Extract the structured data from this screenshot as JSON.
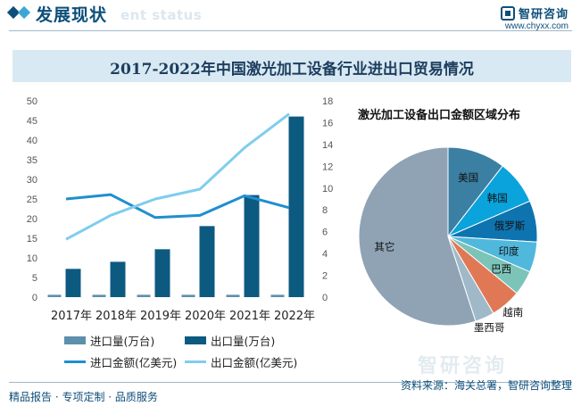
{
  "header": {
    "title": "发展现状",
    "bg_text": "ent status",
    "brand_name": "智研咨询",
    "brand_url": "www.chyxx.com"
  },
  "chart_title": "2017-2022年中国激光加工设备行业进出口贸易情况",
  "chart_data": [
    {
      "type": "bar+line",
      "categories": [
        "2017年",
        "2018年",
        "2019年",
        "2020年",
        "2021年",
        "2022年"
      ],
      "left_axis": {
        "min": 0,
        "max": 50,
        "ticks": [
          0,
          5,
          10,
          15,
          20,
          25,
          30,
          35,
          40,
          45,
          50
        ]
      },
      "right_axis": {
        "min": 0,
        "max": 18,
        "ticks": [
          0,
          2,
          4,
          6,
          8,
          10,
          12,
          14,
          16,
          18
        ]
      },
      "series": [
        {
          "name": "进口量(万台)",
          "kind": "bar",
          "axis": "left",
          "color": "#5e8fab",
          "values": [
            0.6,
            0.6,
            0.6,
            0.6,
            0.6,
            0.6
          ]
        },
        {
          "name": "出口量(万台)",
          "kind": "bar",
          "axis": "left",
          "color": "#0d5a80",
          "values": [
            7.2,
            9.0,
            12.2,
            18.1,
            26.0,
            46.0
          ]
        },
        {
          "name": "进口金额(亿美元)",
          "kind": "line",
          "axis": "right",
          "color": "#1f8fd0",
          "values": [
            9.0,
            9.4,
            7.3,
            7.5,
            9.3,
            8.2
          ]
        },
        {
          "name": "出口金额(亿美元)",
          "kind": "line",
          "axis": "right",
          "color": "#7fcdee",
          "values": [
            5.3,
            7.5,
            9.0,
            9.9,
            13.7,
            16.8
          ]
        }
      ]
    },
    {
      "type": "pie",
      "title": "激光加工设备出口金额区域分布",
      "slices": [
        {
          "label": "美国",
          "value": 10.5,
          "color": "#3b7fa3"
        },
        {
          "label": "韩国",
          "value": 8.0,
          "color": "#0aa3dc"
        },
        {
          "label": "俄罗斯",
          "value": 7.5,
          "color": "#0e74b0"
        },
        {
          "label": "印度",
          "value": 5.5,
          "color": "#4fb8dc"
        },
        {
          "label": "巴西",
          "value": 4.5,
          "color": "#7cc4b8"
        },
        {
          "label": "越南",
          "value": 5.5,
          "color": "#e07856"
        },
        {
          "label": "墨西哥",
          "value": 3.5,
          "color": "#9fb9c8"
        },
        {
          "label": "其它",
          "value": 55.0,
          "color": "#8fa3b5"
        }
      ]
    }
  ],
  "footer": {
    "left": "精品报告 · 专项定制 · 品质服务",
    "right": "资料来源：海关总署，智研咨询整理"
  },
  "watermark": "智研咨询"
}
